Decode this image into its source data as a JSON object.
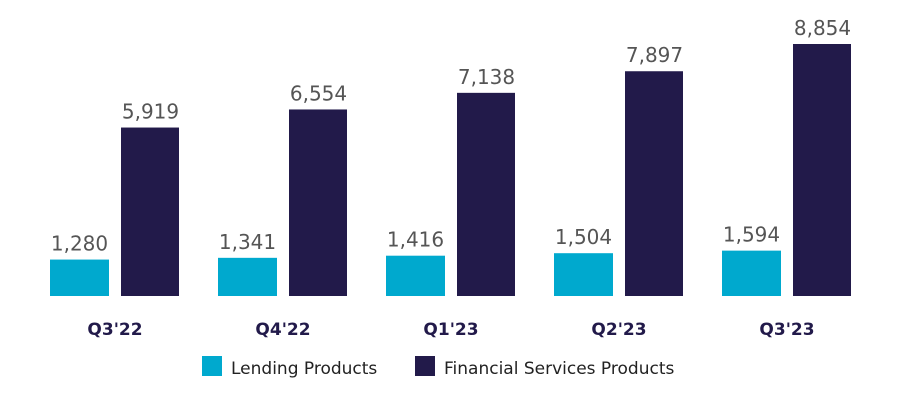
{
  "chart_data": {
    "type": "bar",
    "categories": [
      "Q3'22",
      "Q4'22",
      "Q1'23",
      "Q2'23",
      "Q3'23"
    ],
    "series": [
      {
        "name": "Lending Products",
        "values": [
          1280,
          1341,
          1416,
          1504,
          1594
        ],
        "labels": [
          "1,280",
          "1,341",
          "1,416",
          "1,504",
          "1,594"
        ],
        "color": "#00A9CE"
      },
      {
        "name": "Financial Services Products",
        "values": [
          5919,
          6554,
          7138,
          7897,
          8854
        ],
        "labels": [
          "5,919",
          "6,554",
          "7,138",
          "7,897",
          "8,854"
        ],
        "color": "#221A4A"
      }
    ],
    "title": "",
    "xlabel": "",
    "ylabel": "",
    "ylim": [
      0,
      8854
    ],
    "grid": false,
    "legend": "bottom"
  }
}
